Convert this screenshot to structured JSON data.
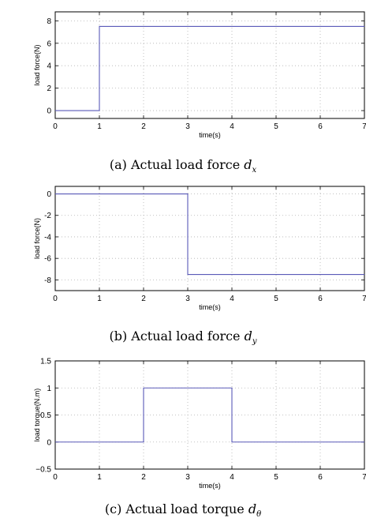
{
  "figure": {
    "line_color": "#5a5ab8"
  },
  "chart_data": [
    {
      "type": "line",
      "step": true,
      "caption_prefix": "(a)",
      "caption_text": "Actual load force",
      "caption_symbol": "d",
      "caption_subscript": "x",
      "xlabel": "time(s)",
      "ylabel": "load force(N)",
      "xlim": [
        0,
        7
      ],
      "ylim": [
        -0.7,
        8.8
      ],
      "xticks": [
        0,
        1,
        2,
        3,
        4,
        5,
        6,
        7
      ],
      "yticks": [
        0,
        2,
        4,
        6,
        8
      ],
      "xtick_labels": [
        "0",
        "1",
        "2",
        "3",
        "4",
        "5",
        "6",
        "7"
      ],
      "ytick_labels": [
        "0",
        "2",
        "4",
        "6",
        "8"
      ],
      "grid": true,
      "series": [
        {
          "x": [
            0,
            1,
            1,
            7
          ],
          "y": [
            0,
            0,
            7.5,
            7.5
          ]
        }
      ]
    },
    {
      "type": "line",
      "step": true,
      "caption_prefix": "(b)",
      "caption_text": "Actual load force",
      "caption_symbol": "d",
      "caption_subscript": "y",
      "xlabel": "time(s)",
      "ylabel": "load force(N)",
      "xlim": [
        0,
        7
      ],
      "ylim": [
        -9,
        0.7
      ],
      "xticks": [
        0,
        1,
        2,
        3,
        4,
        5,
        6,
        7
      ],
      "yticks": [
        0,
        -2,
        -4,
        -6,
        -8
      ],
      "xtick_labels": [
        "0",
        "1",
        "2",
        "3",
        "4",
        "5",
        "6",
        "7"
      ],
      "ytick_labels": [
        "0",
        "-2",
        "-4",
        "-6",
        "-8"
      ],
      "grid": true,
      "series": [
        {
          "x": [
            0,
            3,
            3,
            7
          ],
          "y": [
            0,
            0,
            -7.5,
            -7.5
          ]
        }
      ]
    },
    {
      "type": "line",
      "step": true,
      "caption_prefix": "(c)",
      "caption_text": "Actual load torque",
      "caption_symbol": "d",
      "caption_subscript": "θ",
      "xlabel": "time(s)",
      "ylabel": "load torque(N.m)",
      "xlim": [
        0,
        7
      ],
      "ylim": [
        -0.5,
        1.5
      ],
      "xticks": [
        0,
        1,
        2,
        3,
        4,
        5,
        6,
        7
      ],
      "yticks": [
        -0.5,
        0,
        0.5,
        1,
        1.5
      ],
      "xtick_labels": [
        "0",
        "1",
        "2",
        "3",
        "4",
        "5",
        "6",
        "7"
      ],
      "ytick_labels": [
        "−0.5",
        "0",
        "0.5",
        "1",
        "1.5"
      ],
      "grid": true,
      "series": [
        {
          "x": [
            0,
            2,
            2,
            4,
            4,
            7
          ],
          "y": [
            0,
            0,
            1,
            1,
            0,
            0
          ]
        }
      ]
    }
  ]
}
